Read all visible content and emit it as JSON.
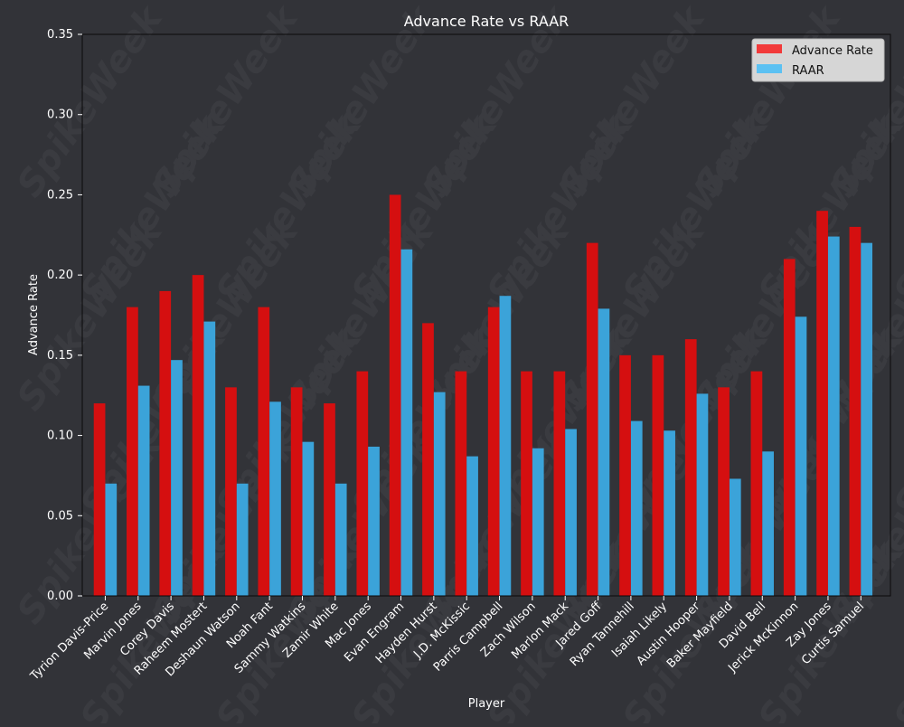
{
  "chart_data": {
    "type": "bar",
    "title": "Advance Rate vs RAAR",
    "xlabel": "Player",
    "ylabel": "Advance Rate",
    "ylim": [
      0,
      0.35
    ],
    "yticks": [
      0.0,
      0.05,
      0.1,
      0.15,
      0.2,
      0.25,
      0.3,
      0.35
    ],
    "ytick_labels": [
      "0.00",
      "0.05",
      "0.10",
      "0.15",
      "0.20",
      "0.25",
      "0.30",
      "0.35"
    ],
    "legend_position": "top-right",
    "watermark": "SpikeWeek",
    "categories": [
      "Tyrion Davis-Price",
      "Marvin Jones",
      "Corey Davis",
      "Raheem Mostert",
      "Deshaun Watson",
      "Noah Fant",
      "Sammy Watkins",
      "Zamir White",
      "Mac Jones",
      "Evan Engram",
      "Hayden Hurst",
      "J.D. McKissic",
      "Parris Campbell",
      "Zach Wilson",
      "Marlon Mack",
      "Jared Goff",
      "Ryan Tannehill",
      "Isaiah Likely",
      "Austin Hooper",
      "Baker Mayfield",
      "David Bell",
      "Jerick McKinnon",
      "Zay Jones",
      "Curtis Samuel"
    ],
    "series": [
      {
        "name": "Advance Rate",
        "color": "#d50f10",
        "legend_color": "#f23a3a",
        "values": [
          0.12,
          0.18,
          0.19,
          0.2,
          0.13,
          0.18,
          0.13,
          0.12,
          0.14,
          0.25,
          0.17,
          0.14,
          0.18,
          0.14,
          0.14,
          0.22,
          0.15,
          0.15,
          0.16,
          0.13,
          0.14,
          0.21,
          0.24,
          0.23
        ]
      },
      {
        "name": "RAAR",
        "color": "#3ba3d9",
        "legend_color": "#5cc1f2",
        "values": [
          0.07,
          0.131,
          0.147,
          0.171,
          0.07,
          0.121,
          0.096,
          0.07,
          0.093,
          0.216,
          0.127,
          0.087,
          0.187,
          0.092,
          0.104,
          0.179,
          0.109,
          0.103,
          0.126,
          0.073,
          0.09,
          0.174,
          0.224,
          0.22
        ]
      }
    ]
  },
  "colors": {
    "background": "#323338",
    "text": "#ffffff",
    "axis": "#0a0a0a",
    "legend_bg": "#d6d6d6",
    "legend_text": "#111111",
    "watermark": "#3a3b40"
  }
}
